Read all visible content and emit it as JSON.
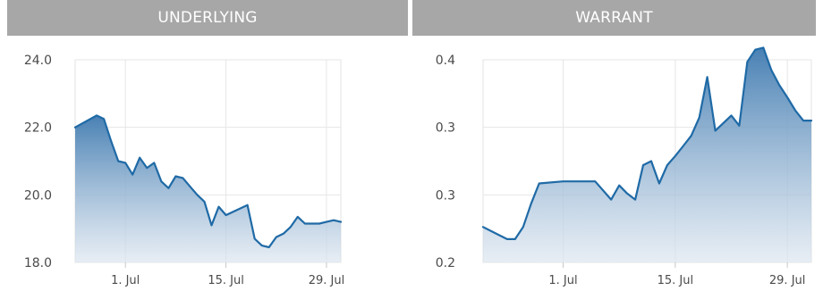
{
  "tabs": [
    {
      "label": "UNDERLYING"
    },
    {
      "label": "WARRANT"
    }
  ],
  "colors": {
    "line": "#1f6aa6",
    "fill_top": "#3f7ab0",
    "fill_bottom": "#dde6f0",
    "header_bg": "#a7a7a7",
    "grid": "#e6e6e6"
  },
  "chart_data": [
    {
      "type": "area",
      "title": "UNDERLYING",
      "x_ticks": [
        "1. Jul",
        "15. Jul",
        "29. Jul"
      ],
      "y_ticks": [
        "24.0",
        "22.0",
        "20.0",
        "18.0"
      ],
      "ylim": [
        18,
        24
      ],
      "xlim": [
        "2019-06-24",
        "2019-07-31"
      ],
      "grid": true,
      "series": [
        {
          "x": [
            "2019-06-24",
            "2019-06-27",
            "2019-06-28",
            "2019-06-29",
            "2019-06-30",
            "2019-07-01",
            "2019-07-02",
            "2019-07-03",
            "2019-07-04",
            "2019-07-05",
            "2019-07-06",
            "2019-07-07",
            "2019-07-08",
            "2019-07-09",
            "2019-07-10",
            "2019-07-11",
            "2019-07-12",
            "2019-07-13",
            "2019-07-14",
            "2019-07-15",
            "2019-07-16",
            "2019-07-17",
            "2019-07-18",
            "2019-07-19",
            "2019-07-20",
            "2019-07-21",
            "2019-07-22",
            "2019-07-23",
            "2019-07-24",
            "2019-07-25",
            "2019-07-26",
            "2019-07-27",
            "2019-07-28",
            "2019-07-29",
            "2019-07-30",
            "2019-07-31"
          ],
          "values": [
            22.0,
            22.35,
            22.25,
            21.6,
            21.0,
            20.95,
            20.6,
            21.1,
            20.8,
            20.95,
            20.4,
            20.2,
            20.55,
            20.5,
            20.25,
            20.0,
            19.8,
            19.1,
            19.65,
            19.4,
            19.5,
            19.6,
            19.7,
            18.7,
            18.5,
            18.45,
            18.75,
            18.85,
            19.05,
            19.35,
            19.15,
            19.15,
            19.15,
            19.2,
            19.25,
            19.2
          ]
        }
      ]
    },
    {
      "type": "area",
      "title": "WARRANT",
      "x_ticks": [
        "1. Jul",
        "15. Jul",
        "29. Jul"
      ],
      "y_ticks": [
        "0.4",
        "0.3",
        "0.3",
        "0.2"
      ],
      "ylim": [
        0.2,
        0.4
      ],
      "xlim": [
        "2019-06-21",
        "2019-08-01"
      ],
      "grid": true,
      "series": [
        {
          "x": [
            "2019-06-21",
            "2019-06-23",
            "2019-06-24",
            "2019-06-25",
            "2019-06-26",
            "2019-06-27",
            "2019-06-28",
            "2019-07-01",
            "2019-07-03",
            "2019-07-04",
            "2019-07-05",
            "2019-07-07",
            "2019-07-08",
            "2019-07-09",
            "2019-07-10",
            "2019-07-11",
            "2019-07-12",
            "2019-07-13",
            "2019-07-14",
            "2019-07-15",
            "2019-07-16",
            "2019-07-17",
            "2019-07-18",
            "2019-07-19",
            "2019-07-20",
            "2019-07-22",
            "2019-07-23",
            "2019-07-24",
            "2019-07-25",
            "2019-07-26",
            "2019-07-27",
            "2019-07-28",
            "2019-07-29",
            "2019-07-30",
            "2019-07-31",
            "2019-08-01"
          ],
          "values": [
            0.235,
            0.227,
            0.223,
            0.223,
            0.235,
            0.258,
            0.278,
            0.28,
            0.28,
            0.28,
            0.28,
            0.262,
            0.276,
            0.268,
            0.262,
            0.296,
            0.3,
            0.278,
            0.296,
            0.305,
            0.315,
            0.325,
            0.343,
            0.383,
            0.33,
            0.345,
            0.335,
            0.398,
            0.41,
            0.412,
            0.39,
            0.375,
            0.363,
            0.35,
            0.34,
            0.34
          ]
        }
      ]
    }
  ]
}
